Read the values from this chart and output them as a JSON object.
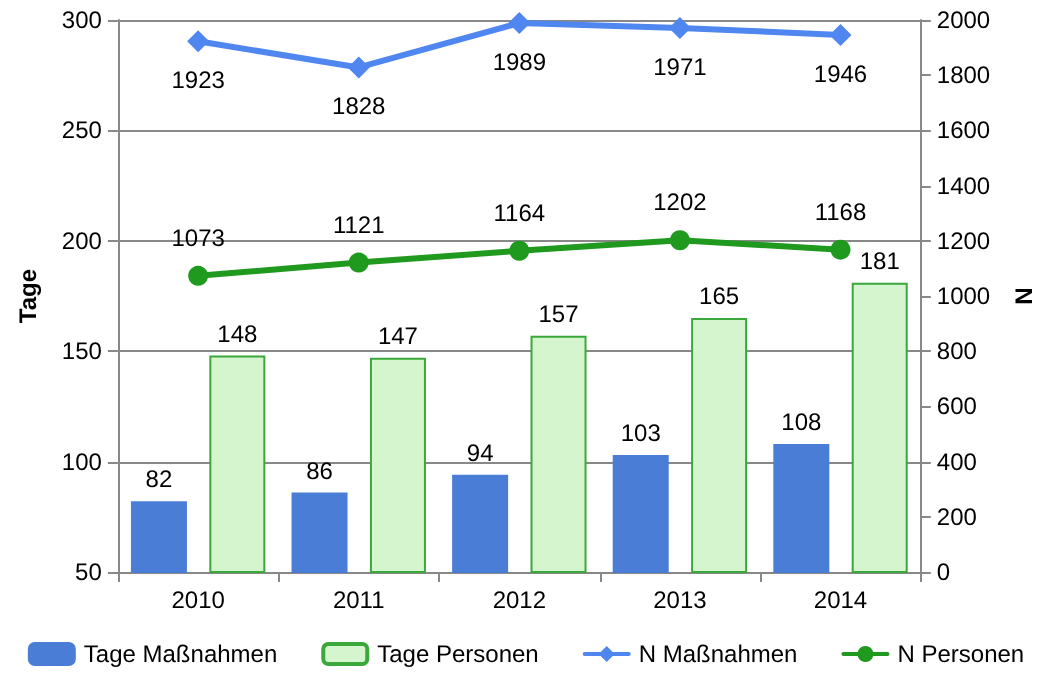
{
  "chart_data": {
    "type": "bar",
    "categories": [
      "2010",
      "2011",
      "2012",
      "2013",
      "2014"
    ],
    "ylabel": "Tage",
    "y2label": "N",
    "ylim": [
      50,
      300
    ],
    "yticks": [
      50,
      100,
      150,
      200,
      250,
      300
    ],
    "y2lim": [
      0,
      2000
    ],
    "y2ticks": [
      0,
      200,
      400,
      600,
      800,
      1000,
      1200,
      1400,
      1600,
      1800,
      2000
    ],
    "grid": "y",
    "legend": "bottom",
    "data_labels": true,
    "series": [
      {
        "name": "Tage Maßnahmen",
        "color": "#4a7ed6",
        "values": [
          82,
          86,
          94,
          103,
          108
        ]
      },
      {
        "name": "Tage Personen",
        "color": "#d5f5cf",
        "values": [
          148,
          147,
          157,
          165,
          181
        ]
      },
      {
        "name": "N Maßnahmen",
        "type": "line",
        "axis": "y2",
        "marker": "diamond",
        "color": "#4f86f0",
        "values": [
          1923,
          1828,
          1989,
          1971,
          1946
        ]
      },
      {
        "name": "N Personen",
        "type": "line",
        "axis": "y2",
        "marker": "circle",
        "color": "#1f9a1f",
        "values": [
          1073,
          1121,
          1164,
          1202,
          1168
        ]
      }
    ]
  }
}
